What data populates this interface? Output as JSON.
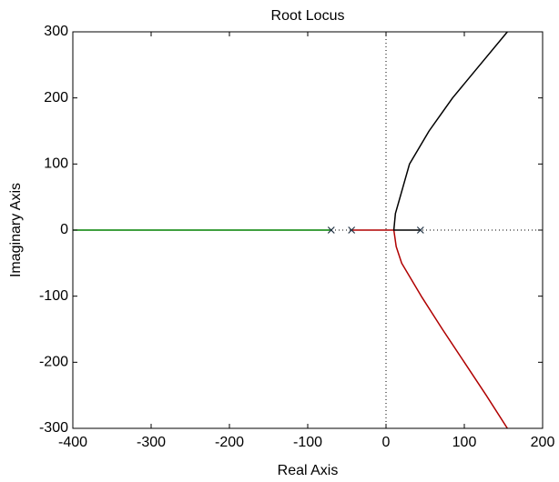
{
  "chart_data": {
    "type": "line",
    "title": "Root Locus",
    "xlabel": "Real Axis",
    "ylabel": "Imaginary Axis",
    "xlim": [
      -400,
      200
    ],
    "xticks": [
      -400,
      -300,
      -200,
      -100,
      0,
      100,
      200
    ],
    "ylim": [
      -300,
      300
    ],
    "yticks": [
      -300,
      -200,
      -100,
      0,
      100,
      200,
      300
    ],
    "series": [
      {
        "color": "#008000",
        "x": [
          -400,
          -70
        ],
        "y": [
          0,
          0
        ]
      },
      {
        "color": "#b00000",
        "x": [
          -44,
          10,
          13,
          20,
          45,
          72,
          100,
          128,
          155
        ],
        "y": [
          0,
          0,
          -25,
          -50,
          -100,
          -150,
          -200,
          -250,
          -300
        ]
      },
      {
        "color": "#000000",
        "x": [
          44,
          10,
          12,
          18,
          30,
          55,
          85,
          120,
          155
        ],
        "y": [
          0,
          0,
          25,
          50,
          100,
          150,
          200,
          250,
          300
        ]
      },
      {
        "color": "#223344",
        "marker": "x",
        "x": [
          -70,
          -44,
          44
        ],
        "y": [
          0,
          0,
          0
        ]
      }
    ]
  }
}
